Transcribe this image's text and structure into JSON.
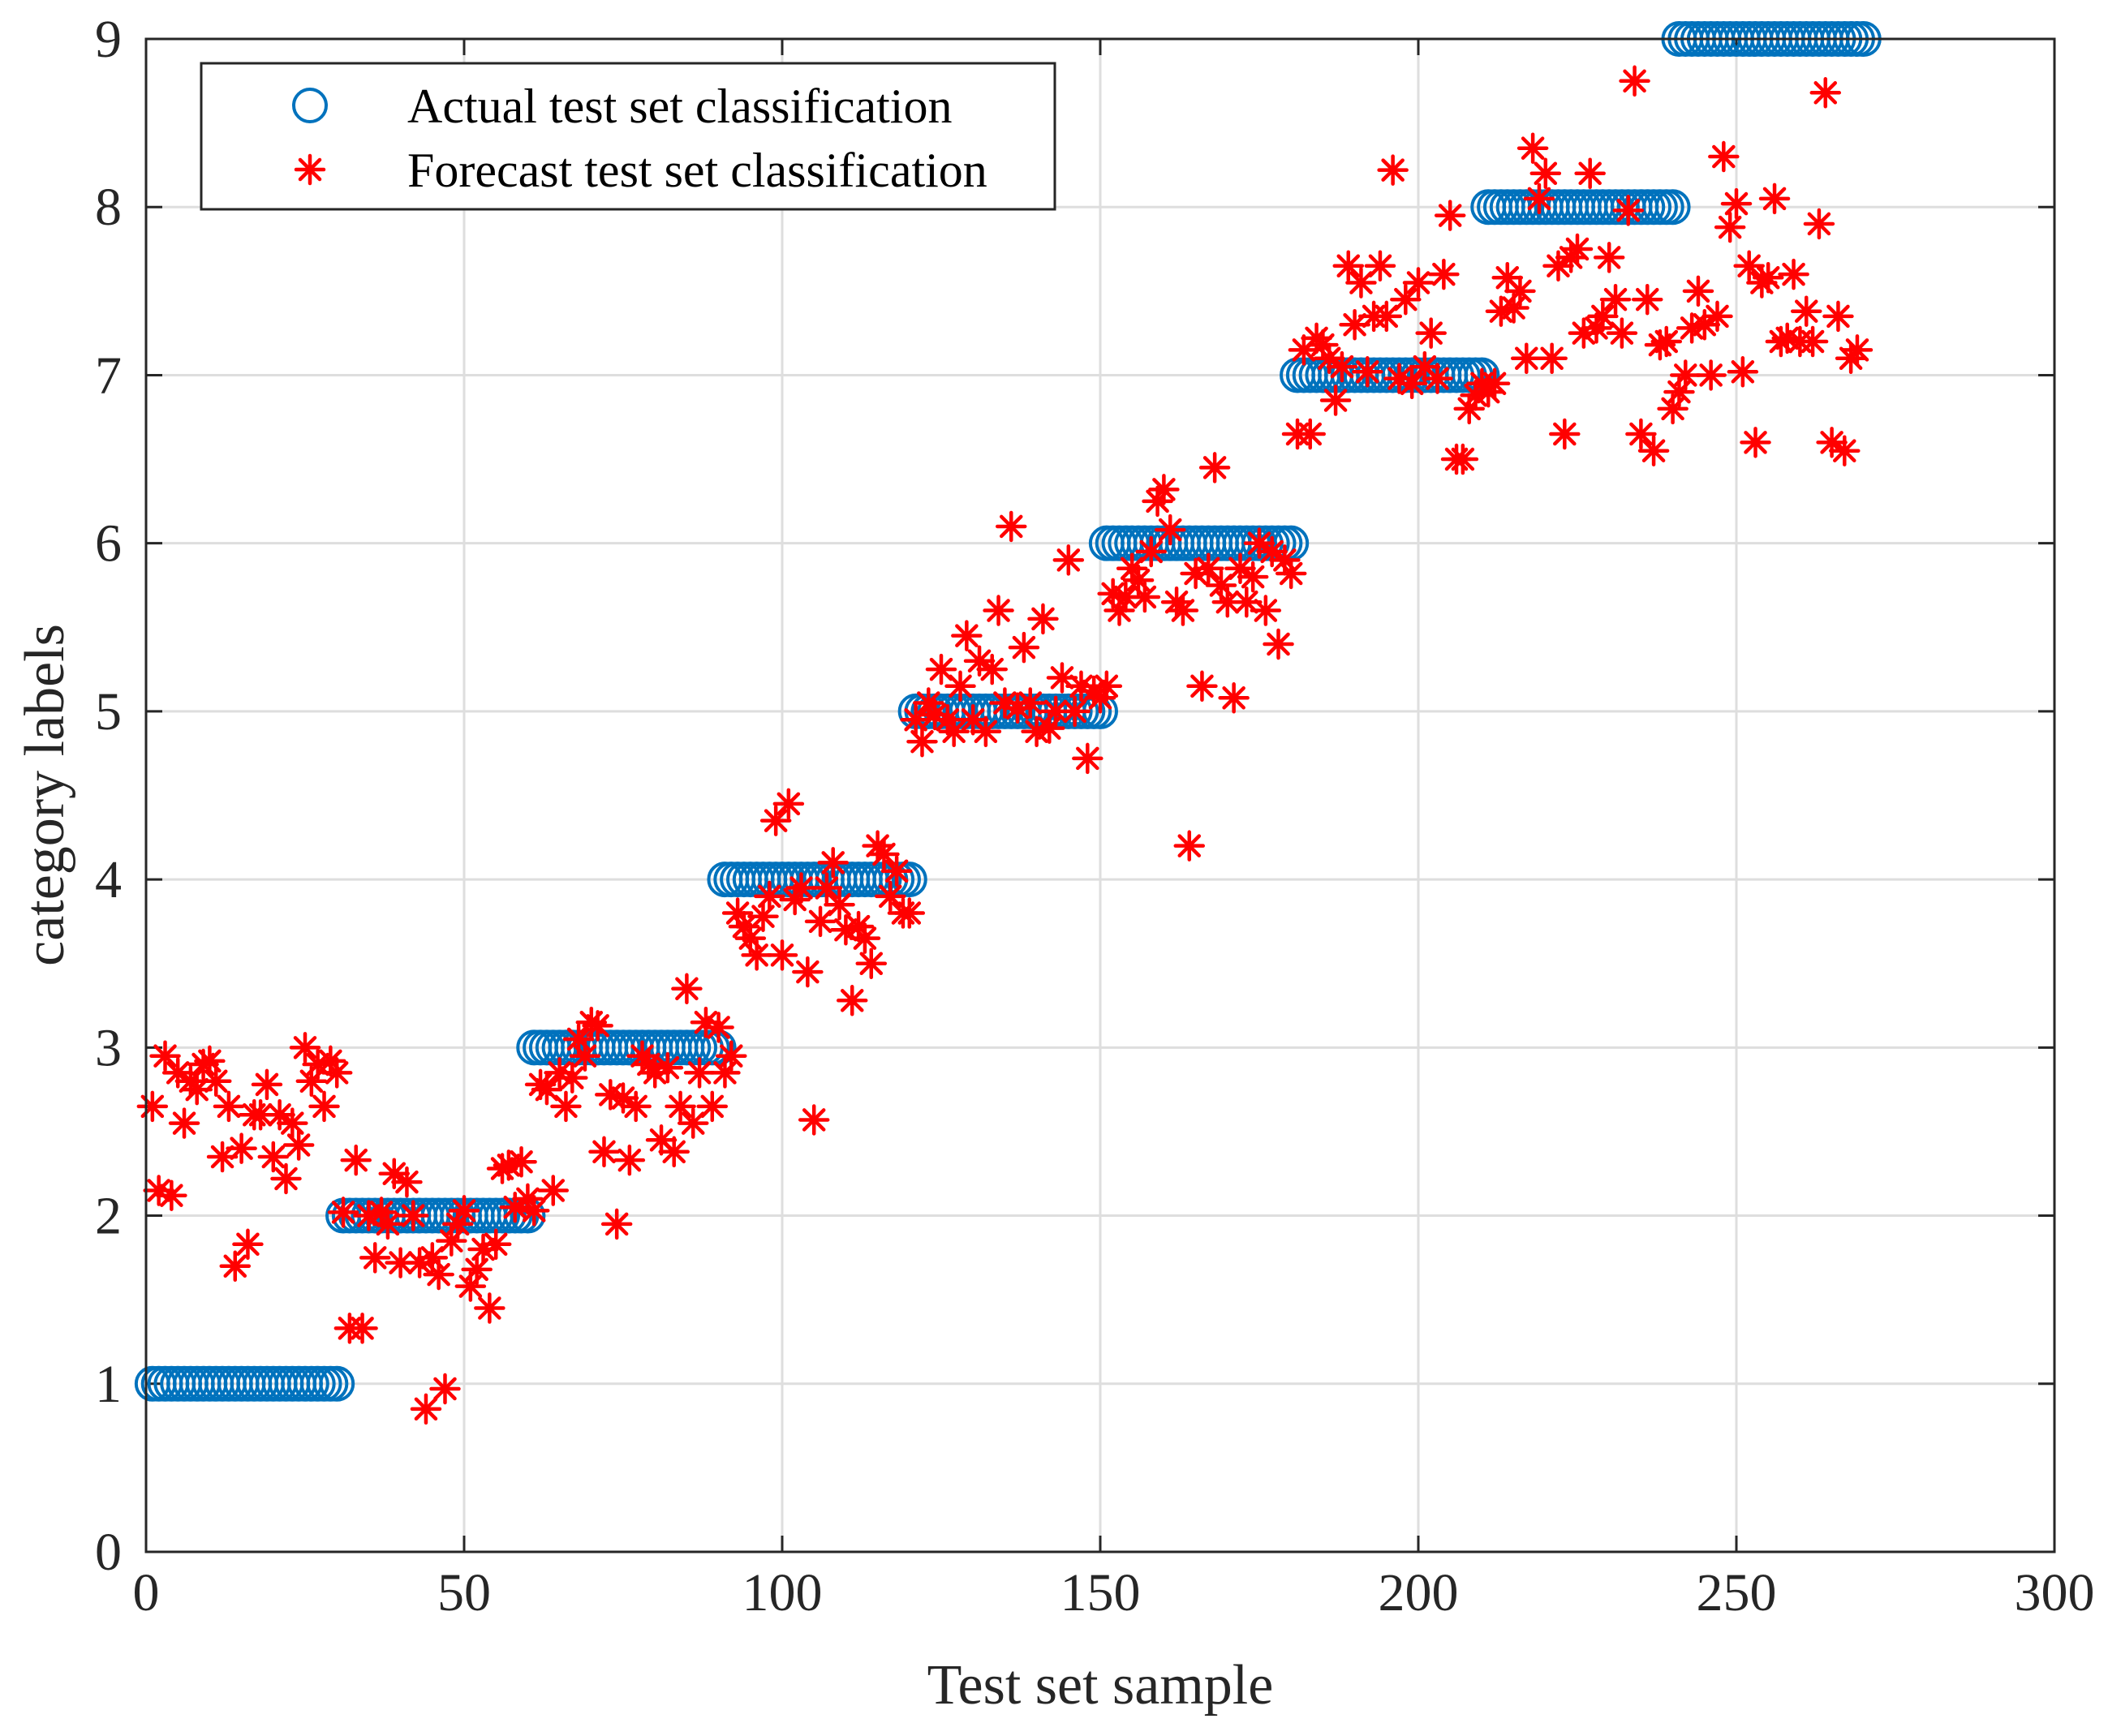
{
  "chart_data": {
    "type": "scatter",
    "title": "",
    "xlabel": "Test set sample",
    "ylabel": "category labels",
    "xlim": [
      0,
      300
    ],
    "ylim": [
      0,
      9
    ],
    "xticks": [
      "0",
      "50",
      "100",
      "150",
      "200",
      "250",
      "300"
    ],
    "yticks": [
      "0",
      "1",
      "2",
      "3",
      "4",
      "5",
      "6",
      "7",
      "8",
      "9"
    ],
    "grid": true,
    "legend_position": "top-left",
    "series": [
      {
        "name": "Actual test set classification",
        "marker": "circle",
        "color": "#0072BD",
        "segments": [
          {
            "x_start": 1,
            "x_end": 30,
            "y": 1
          },
          {
            "x_start": 31,
            "x_end": 60,
            "y": 2
          },
          {
            "x_start": 61,
            "x_end": 90,
            "y": 3
          },
          {
            "x_start": 91,
            "x_end": 120,
            "y": 4
          },
          {
            "x_start": 121,
            "x_end": 150,
            "y": 5
          },
          {
            "x_start": 151,
            "x_end": 180,
            "y": 6
          },
          {
            "x_start": 181,
            "x_end": 210,
            "y": 7
          },
          {
            "x_start": 211,
            "x_end": 240,
            "y": 8
          },
          {
            "x_start": 241,
            "x_end": 270,
            "y": 9
          }
        ]
      },
      {
        "name": "Forecast test set classification",
        "marker": "asterisk",
        "color": "#FF0000",
        "points": [
          [
            1,
            2.65
          ],
          [
            2,
            2.15
          ],
          [
            3,
            2.95
          ],
          [
            4,
            2.12
          ],
          [
            5,
            2.85
          ],
          [
            6,
            2.55
          ],
          [
            7,
            2.8
          ],
          [
            8,
            2.75
          ],
          [
            9,
            2.9
          ],
          [
            10,
            2.92
          ],
          [
            11,
            2.8
          ],
          [
            12,
            2.35
          ],
          [
            13,
            2.65
          ],
          [
            14,
            1.7
          ],
          [
            15,
            2.4
          ],
          [
            16,
            1.83
          ],
          [
            17,
            2.6
          ],
          [
            18,
            2.6
          ],
          [
            19,
            2.78
          ],
          [
            20,
            2.35
          ],
          [
            21,
            2.6
          ],
          [
            22,
            2.22
          ],
          [
            23,
            2.55
          ],
          [
            24,
            2.42
          ],
          [
            25,
            3.0
          ],
          [
            26,
            2.8
          ],
          [
            27,
            2.9
          ],
          [
            28,
            2.65
          ],
          [
            29,
            2.92
          ],
          [
            30,
            2.85
          ],
          [
            31,
            2.02
          ],
          [
            32,
            1.33
          ],
          [
            33,
            2.33
          ],
          [
            34,
            1.33
          ],
          [
            35,
            2.0
          ],
          [
            36,
            1.75
          ],
          [
            37,
            2.02
          ],
          [
            38,
            1.95
          ],
          [
            39,
            2.25
          ],
          [
            40,
            1.72
          ],
          [
            41,
            2.2
          ],
          [
            42,
            2.0
          ],
          [
            43,
            1.72
          ],
          [
            44,
            0.85
          ],
          [
            45,
            1.75
          ],
          [
            46,
            1.65
          ],
          [
            47,
            0.97
          ],
          [
            48,
            1.85
          ],
          [
            49,
            1.95
          ],
          [
            50,
            2.03
          ],
          [
            51,
            1.58
          ],
          [
            52,
            1.68
          ],
          [
            53,
            1.8
          ],
          [
            54,
            1.45
          ],
          [
            55,
            1.83
          ],
          [
            56,
            2.28
          ],
          [
            57,
            2.3
          ],
          [
            58,
            2.05
          ],
          [
            59,
            2.32
          ],
          [
            60,
            2.1
          ],
          [
            61,
            2.03
          ],
          [
            62,
            2.78
          ],
          [
            63,
            2.75
          ],
          [
            64,
            2.15
          ],
          [
            65,
            2.85
          ],
          [
            66,
            2.65
          ],
          [
            67,
            2.82
          ],
          [
            68,
            3.05
          ],
          [
            69,
            2.95
          ],
          [
            70,
            3.15
          ],
          [
            71,
            3.13
          ],
          [
            72,
            2.38
          ],
          [
            73,
            2.72
          ],
          [
            74,
            1.95
          ],
          [
            75,
            2.7
          ],
          [
            76,
            2.33
          ],
          [
            77,
            2.65
          ],
          [
            78,
            2.95
          ],
          [
            79,
            2.9
          ],
          [
            80,
            2.85
          ],
          [
            81,
            2.45
          ],
          [
            82,
            2.88
          ],
          [
            83,
            2.38
          ],
          [
            84,
            2.65
          ],
          [
            85,
            3.35
          ],
          [
            86,
            2.55
          ],
          [
            87,
            2.85
          ],
          [
            88,
            3.15
          ],
          [
            89,
            2.65
          ],
          [
            90,
            3.12
          ],
          [
            91,
            2.85
          ],
          [
            92,
            2.95
          ],
          [
            93,
            3.8
          ],
          [
            94,
            3.72
          ],
          [
            95,
            3.65
          ],
          [
            96,
            3.55
          ],
          [
            97,
            3.78
          ],
          [
            98,
            3.9
          ],
          [
            99,
            4.35
          ],
          [
            100,
            3.55
          ],
          [
            101,
            4.45
          ],
          [
            102,
            3.88
          ],
          [
            103,
            3.95
          ],
          [
            104,
            3.45
          ],
          [
            105,
            2.57
          ],
          [
            106,
            3.75
          ],
          [
            107,
            3.95
          ],
          [
            108,
            4.1
          ],
          [
            109,
            3.85
          ],
          [
            110,
            3.7
          ],
          [
            111,
            3.28
          ],
          [
            112,
            3.72
          ],
          [
            113,
            3.65
          ],
          [
            114,
            3.5
          ],
          [
            115,
            4.2
          ],
          [
            116,
            4.15
          ],
          [
            117,
            3.9
          ],
          [
            118,
            4.05
          ],
          [
            119,
            3.8
          ],
          [
            120,
            3.8
          ],
          [
            121,
            4.95
          ],
          [
            122,
            4.82
          ],
          [
            123,
            5.05
          ],
          [
            124,
            4.98
          ],
          [
            125,
            5.25
          ],
          [
            126,
            4.95
          ],
          [
            127,
            4.88
          ],
          [
            128,
            5.15
          ],
          [
            129,
            5.45
          ],
          [
            130,
            4.95
          ],
          [
            131,
            5.3
          ],
          [
            132,
            4.88
          ],
          [
            133,
            5.25
          ],
          [
            134,
            5.6
          ],
          [
            135,
            5.05
          ],
          [
            136,
            6.1
          ],
          [
            137,
            5.02
          ],
          [
            138,
            5.38
          ],
          [
            139,
            5.05
          ],
          [
            140,
            4.88
          ],
          [
            141,
            5.55
          ],
          [
            142,
            4.9
          ],
          [
            143,
            5.0
          ],
          [
            144,
            5.2
          ],
          [
            145,
            5.9
          ],
          [
            146,
            5.0
          ],
          [
            147,
            5.15
          ],
          [
            148,
            4.72
          ],
          [
            149,
            5.12
          ],
          [
            150,
            5.08
          ],
          [
            151,
            5.15
          ],
          [
            152,
            5.7
          ],
          [
            153,
            5.6
          ],
          [
            154,
            5.68
          ],
          [
            155,
            5.85
          ],
          [
            156,
            5.78
          ],
          [
            157,
            5.68
          ],
          [
            158,
            5.95
          ],
          [
            159,
            6.25
          ],
          [
            160,
            6.32
          ],
          [
            161,
            6.08
          ],
          [
            162,
            5.65
          ],
          [
            163,
            5.6
          ],
          [
            164,
            4.2
          ],
          [
            165,
            5.82
          ],
          [
            166,
            5.15
          ],
          [
            167,
            5.85
          ],
          [
            168,
            6.45
          ],
          [
            169,
            5.75
          ],
          [
            170,
            5.65
          ],
          [
            171,
            5.08
          ],
          [
            172,
            5.85
          ],
          [
            173,
            5.65
          ],
          [
            174,
            5.8
          ],
          [
            175,
            6.0
          ],
          [
            176,
            5.6
          ],
          [
            177,
            5.95
          ],
          [
            178,
            5.4
          ],
          [
            179,
            5.9
          ],
          [
            180,
            5.82
          ],
          [
            181,
            6.65
          ],
          [
            182,
            7.15
          ],
          [
            183,
            6.65
          ],
          [
            184,
            7.22
          ],
          [
            185,
            7.18
          ],
          [
            186,
            7.1
          ],
          [
            187,
            6.85
          ],
          [
            188,
            7.05
          ],
          [
            189,
            7.65
          ],
          [
            190,
            7.3
          ],
          [
            191,
            7.55
          ],
          [
            192,
            7.02
          ],
          [
            193,
            7.35
          ],
          [
            194,
            7.65
          ],
          [
            195,
            7.35
          ],
          [
            196,
            8.22
          ],
          [
            197,
            6.98
          ],
          [
            198,
            7.45
          ],
          [
            199,
            6.95
          ],
          [
            200,
            7.55
          ],
          [
            201,
            7.05
          ],
          [
            202,
            7.25
          ],
          [
            203,
            6.98
          ],
          [
            204,
            7.6
          ],
          [
            205,
            7.95
          ],
          [
            206,
            6.5
          ],
          [
            207,
            6.5
          ],
          [
            208,
            6.8
          ],
          [
            209,
            6.88
          ],
          [
            210,
            6.95
          ],
          [
            211,
            6.9
          ],
          [
            212,
            6.95
          ],
          [
            213,
            7.38
          ],
          [
            214,
            7.58
          ],
          [
            215,
            7.4
          ],
          [
            216,
            7.5
          ],
          [
            217,
            7.1
          ],
          [
            218,
            8.35
          ],
          [
            219,
            8.05
          ],
          [
            220,
            8.2
          ],
          [
            221,
            7.1
          ],
          [
            222,
            7.65
          ],
          [
            223,
            6.65
          ],
          [
            224,
            7.7
          ],
          [
            225,
            7.75
          ],
          [
            226,
            7.25
          ],
          [
            227,
            8.2
          ],
          [
            228,
            7.28
          ],
          [
            229,
            7.35
          ],
          [
            230,
            7.7
          ],
          [
            231,
            7.45
          ],
          [
            232,
            7.25
          ],
          [
            233,
            7.98
          ],
          [
            234,
            8.75
          ],
          [
            235,
            6.65
          ],
          [
            236,
            7.45
          ],
          [
            237,
            6.55
          ],
          [
            238,
            7.18
          ],
          [
            239,
            7.2
          ],
          [
            240,
            6.8
          ],
          [
            241,
            6.9
          ],
          [
            242,
            7.0
          ],
          [
            243,
            7.28
          ],
          [
            244,
            7.5
          ],
          [
            245,
            7.3
          ],
          [
            246,
            7.0
          ],
          [
            247,
            7.35
          ],
          [
            248,
            8.3
          ],
          [
            249,
            7.88
          ],
          [
            250,
            8.02
          ],
          [
            251,
            7.02
          ],
          [
            252,
            7.65
          ],
          [
            253,
            6.6
          ],
          [
            254,
            7.55
          ],
          [
            255,
            7.58
          ],
          [
            256,
            8.05
          ],
          [
            257,
            7.2
          ],
          [
            258,
            7.22
          ],
          [
            259,
            7.6
          ],
          [
            260,
            7.2
          ],
          [
            261,
            7.38
          ],
          [
            262,
            7.2
          ],
          [
            263,
            7.9
          ],
          [
            264,
            8.68
          ],
          [
            265,
            6.6
          ],
          [
            266,
            7.35
          ],
          [
            267,
            6.55
          ],
          [
            268,
            7.1
          ],
          [
            269,
            7.15
          ]
        ]
      }
    ]
  }
}
